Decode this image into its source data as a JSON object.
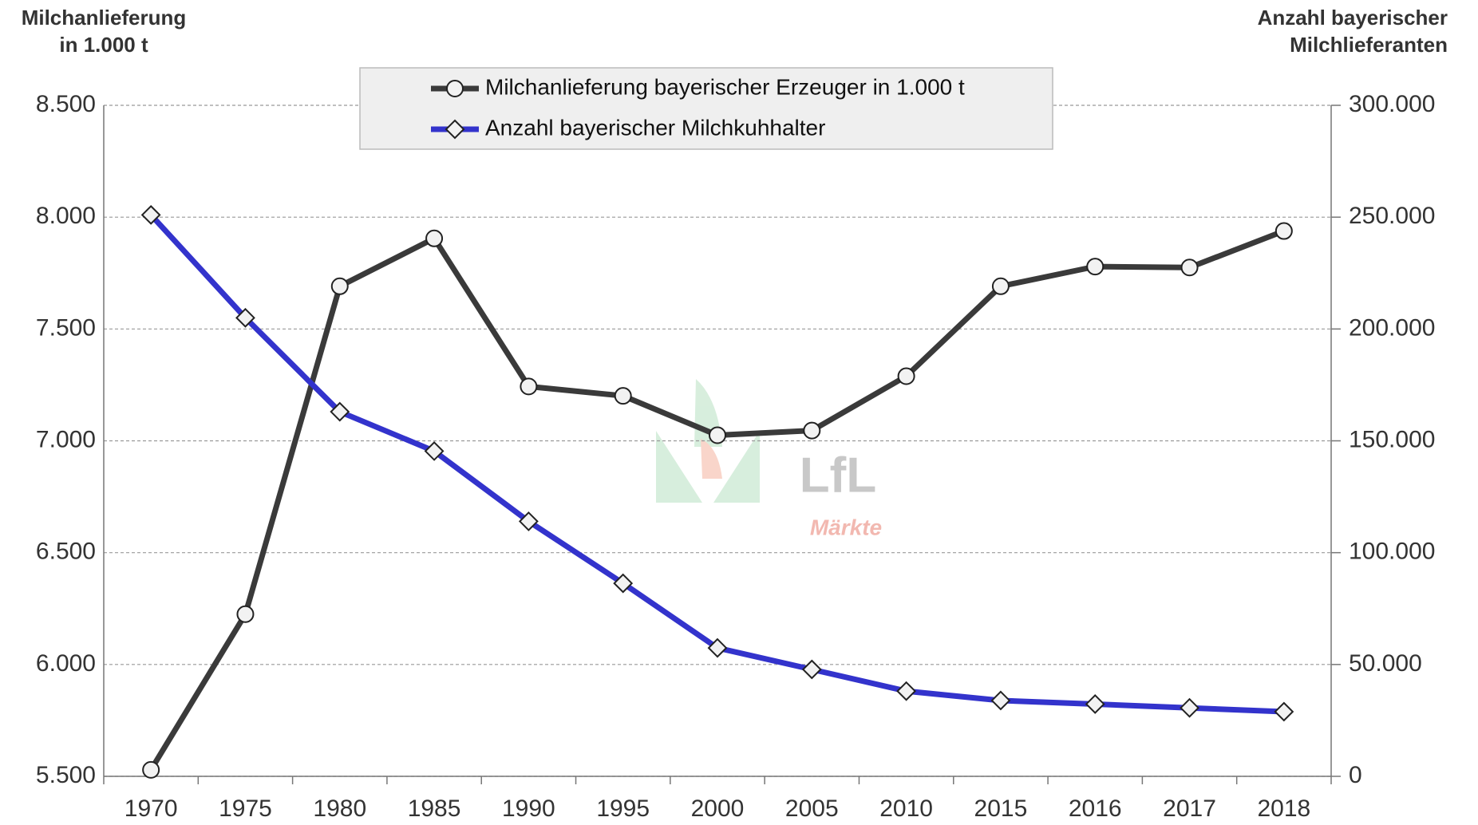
{
  "chart_data": {
    "type": "line",
    "y_label": [
      "Milchanlieferung",
      "in 1.000 t"
    ],
    "y2_label": [
      "Anzahl bayerischer",
      "Milchlieferanten"
    ],
    "watermark": [
      "LfL",
      "Märkte"
    ],
    "categories": [
      "1970",
      "1975",
      "1980",
      "1985",
      "1990",
      "1995",
      "2000",
      "2005",
      "2010",
      "2015",
      "2016",
      "2017",
      "2018"
    ],
    "series": [
      {
        "name": "Milchanlieferung bayerischer Erzeuger in 1.000 t",
        "color": "#3a3a3a",
        "marker": "circle",
        "axis": "y",
        "values": [
          5529,
          6225,
          7691,
          7905,
          7243,
          7201,
          7025,
          7046,
          7289,
          7691,
          7779,
          7775,
          7938
        ]
      },
      {
        "name": "Anzahl bayerischer Milchkuhhalter",
        "color": "#3333cc",
        "marker": "diamond",
        "axis": "y2",
        "values": [
          251000,
          205000,
          163000,
          145400,
          114000,
          86300,
          57400,
          47800,
          38100,
          33900,
          32300,
          30600,
          28900
        ]
      }
    ],
    "ylim": [
      5500,
      8500
    ],
    "yticks": [
      {
        "value": 5500,
        "label": "5.500"
      },
      {
        "value": 6000,
        "label": "6.000"
      },
      {
        "value": 6500,
        "label": "6.500"
      },
      {
        "value": 7000,
        "label": "7.000"
      },
      {
        "value": 7500,
        "label": "7.500"
      },
      {
        "value": 8000,
        "label": "8.000"
      },
      {
        "value": 8500,
        "label": "8.500"
      }
    ],
    "y2lim": [
      0,
      300000
    ],
    "y2ticks": [
      0,
      {
        "value": 50000,
        "label": "50.000"
      },
      {
        "value": 100000,
        "label": "100.000"
      },
      {
        "value": 150000,
        "label": "150.000"
      },
      {
        "value": 200000,
        "label": "200.000"
      },
      {
        "value": 250000,
        "label": "250.000"
      },
      {
        "value": 300000,
        "label": "300.000"
      }
    ],
    "grid": true
  }
}
